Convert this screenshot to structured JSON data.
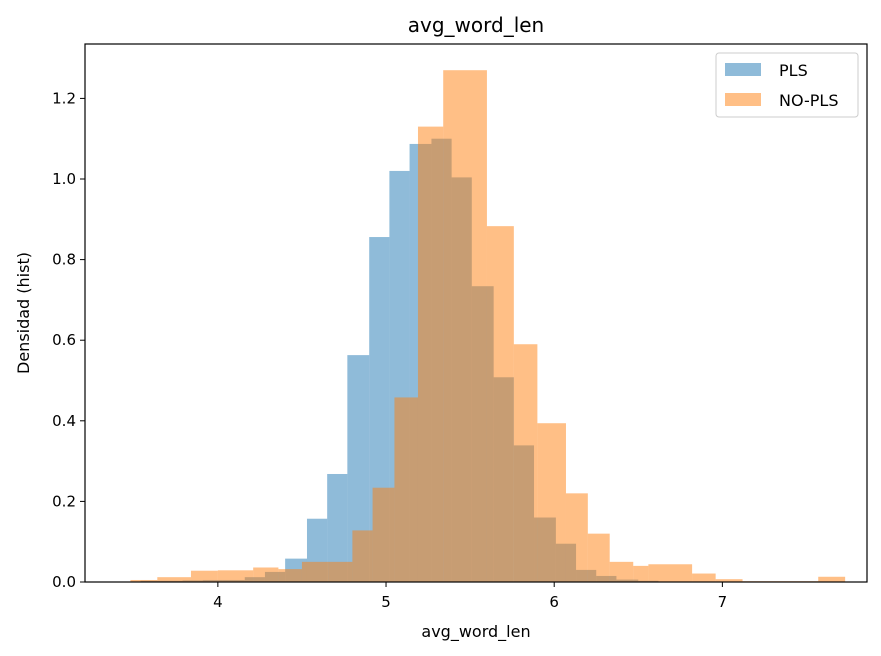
{
  "chart_data": {
    "type": "histogram",
    "title": "avg_word_len",
    "xlabel": "avg_word_len",
    "ylabel": "Densidad (hist)",
    "xlim": [
      3.21,
      7.86
    ],
    "ylim": [
      0.0,
      1.335
    ],
    "xticks": [
      4,
      5,
      6,
      7
    ],
    "yticks": [
      0.0,
      0.2,
      0.4,
      0.6,
      0.8,
      1.0,
      1.2
    ],
    "xtick_labels": [
      "4",
      "5",
      "6",
      "7"
    ],
    "ytick_labels": [
      "0.0",
      "0.2",
      "0.4",
      "0.6",
      "0.8",
      "1.0",
      "1.2"
    ],
    "grid": false,
    "legend_position": "top-right",
    "series": [
      {
        "name": "PLS",
        "color": "#1f77b4",
        "opacity": 0.5,
        "bin_edges": [
          3.54,
          3.66,
          3.79,
          3.91,
          4.03,
          4.16,
          4.28,
          4.4,
          4.53,
          4.65,
          4.77,
          4.9,
          5.02,
          5.14,
          5.27,
          5.39,
          5.51,
          5.64,
          5.76,
          5.88,
          6.01,
          6.13,
          6.25,
          6.37,
          6.5,
          6.62
        ],
        "values": [
          0.003,
          0.003,
          0.004,
          0.005,
          0.005,
          0.012,
          0.025,
          0.058,
          0.157,
          0.268,
          0.563,
          0.856,
          1.02,
          1.087,
          1.1,
          1.004,
          0.734,
          0.508,
          0.339,
          0.16,
          0.095,
          0.03,
          0.015,
          0.006,
          0.003
        ]
      },
      {
        "name": "NO-PLS",
        "color": "#ff7f0e",
        "opacity": 0.5,
        "bin_edges": [
          3.48,
          3.64,
          3.84,
          4.0,
          4.21,
          4.36,
          4.5,
          4.66,
          4.8,
          4.92,
          5.05,
          5.19,
          5.34,
          5.6,
          5.76,
          5.9,
          6.07,
          6.2,
          6.33,
          6.47,
          6.56,
          6.82,
          6.96,
          7.12,
          7.57,
          7.73
        ],
        "values": [
          0.005,
          0.012,
          0.028,
          0.029,
          0.036,
          0.032,
          0.05,
          0.05,
          0.128,
          0.234,
          0.458,
          1.13,
          1.27,
          0.883,
          0.59,
          0.394,
          0.22,
          0.12,
          0.05,
          0.04,
          0.044,
          0.021,
          0.007,
          0.002,
          0.013
        ]
      }
    ]
  }
}
